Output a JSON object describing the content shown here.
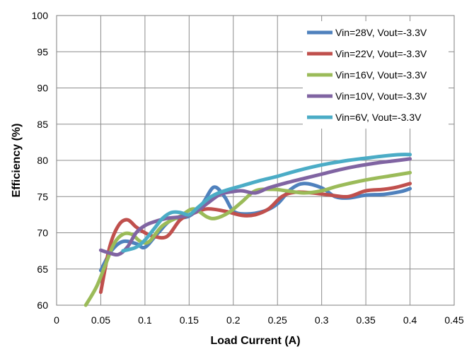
{
  "chart_data": {
    "type": "line",
    "title": "",
    "xlabel": "Load Current (A)",
    "ylabel": "Efficiency (%)",
    "xlim": [
      0,
      0.45
    ],
    "ylim": [
      60,
      100
    ],
    "xticks": [
      "0",
      "0.05",
      "0.1",
      "0.15",
      "0.2",
      "0.25",
      "0.3",
      "0.35",
      "0.4",
      "0.45"
    ],
    "yticks": [
      "60",
      "65",
      "70",
      "75",
      "80",
      "85",
      "90",
      "95",
      "100"
    ],
    "grid": true,
    "legend_position": "top-right",
    "series": [
      {
        "name": "Vin=28V, Vout=-3.3V",
        "color": "#4F81BD",
        "x": [
          0.05,
          0.062,
          0.075,
          0.09,
          0.1,
          0.115,
          0.13,
          0.15,
          0.165,
          0.178,
          0.19,
          0.2,
          0.215,
          0.235,
          0.25,
          0.265,
          0.28,
          0.3,
          0.315,
          0.33,
          0.35,
          0.37,
          0.39,
          0.4
        ],
        "y": [
          64.8,
          67.5,
          68.8,
          68.5,
          68.0,
          70.0,
          71.8,
          72.3,
          74.0,
          76.3,
          75.0,
          73.0,
          72.6,
          73.0,
          74.0,
          76.0,
          76.8,
          76.2,
          75.0,
          74.8,
          75.2,
          75.3,
          75.7,
          76.1
        ]
      },
      {
        "name": "Vin=22V, Vout=-3.3V",
        "color": "#C0504D",
        "x": [
          0.05,
          0.06,
          0.07,
          0.08,
          0.09,
          0.1,
          0.11,
          0.125,
          0.14,
          0.155,
          0.17,
          0.19,
          0.21,
          0.225,
          0.24,
          0.255,
          0.27,
          0.29,
          0.31,
          0.33,
          0.35,
          0.37,
          0.385,
          0.4
        ],
        "y": [
          61.8,
          68.0,
          71.0,
          71.8,
          70.8,
          70.0,
          69.5,
          69.5,
          71.8,
          72.7,
          73.3,
          73.0,
          72.4,
          72.5,
          73.3,
          75.0,
          75.6,
          75.5,
          75.2,
          75.0,
          75.8,
          76.0,
          76.3,
          76.8
        ]
      },
      {
        "name": "Vin=16V, Vout=-3.3V",
        "color": "#9BBB59",
        "x": [
          0.033,
          0.045,
          0.055,
          0.065,
          0.075,
          0.085,
          0.095,
          0.105,
          0.12,
          0.14,
          0.155,
          0.17,
          0.18,
          0.195,
          0.21,
          0.225,
          0.245,
          0.26,
          0.28,
          0.3,
          0.32,
          0.35,
          0.38,
          0.4
        ],
        "y": [
          60.0,
          62.5,
          65.5,
          68.5,
          69.8,
          69.8,
          68.8,
          68.8,
          71.0,
          72.3,
          73.3,
          72.2,
          72.0,
          72.8,
          74.3,
          75.8,
          76.0,
          75.8,
          75.5,
          75.8,
          76.5,
          77.3,
          77.9,
          78.3
        ]
      },
      {
        "name": "Vin=10V, Vout=-3.3V",
        "color": "#8064A2",
        "x": [
          0.05,
          0.06,
          0.07,
          0.08,
          0.09,
          0.1,
          0.11,
          0.125,
          0.14,
          0.155,
          0.17,
          0.185,
          0.2,
          0.21,
          0.225,
          0.24,
          0.26,
          0.28,
          0.3,
          0.32,
          0.34,
          0.36,
          0.38,
          0.4
        ],
        "y": [
          67.6,
          67.2,
          67.0,
          68.0,
          70.0,
          71.0,
          71.5,
          72.0,
          72.2,
          72.7,
          74.0,
          75.3,
          75.7,
          75.8,
          75.5,
          76.2,
          76.9,
          77.5,
          78.1,
          78.7,
          79.2,
          79.6,
          79.9,
          80.2
        ]
      },
      {
        "name": "Vin=6V, Vout=-3.3V",
        "color": "#4BACC6",
        "x": [
          0.075,
          0.09,
          0.1,
          0.11,
          0.12,
          0.13,
          0.14,
          0.15,
          0.16,
          0.175,
          0.19,
          0.21,
          0.23,
          0.25,
          0.27,
          0.29,
          0.31,
          0.33,
          0.35,
          0.37,
          0.39,
          0.4
        ],
        "y": [
          67.5,
          68.0,
          69.0,
          70.5,
          72.0,
          72.8,
          72.8,
          72.5,
          73.5,
          75.0,
          75.8,
          76.5,
          77.2,
          77.8,
          78.5,
          79.1,
          79.6,
          80.0,
          80.3,
          80.6,
          80.8,
          80.8
        ]
      }
    ]
  }
}
